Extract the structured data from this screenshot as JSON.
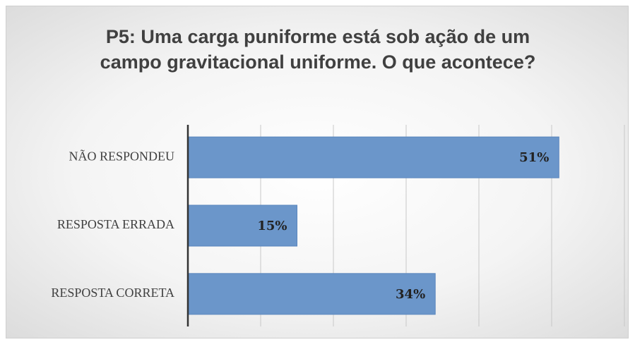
{
  "chart_data": {
    "type": "barh",
    "title": "P5: Uma carga puniforme está sob ação de um campo gravitacional uniforme. O que acontece?",
    "categories": [
      "NÃO RESPONDEU",
      "RESPOSTA ERRADA",
      "RESPOSTA CORRETA"
    ],
    "values": [
      51,
      15,
      34
    ],
    "value_labels": [
      "51%",
      "15%",
      "34%"
    ],
    "color": "#6b96ca",
    "xlim": [
      0,
      60
    ],
    "xticks": [
      0,
      10,
      20,
      30,
      40,
      50,
      60
    ],
    "grid": true
  }
}
